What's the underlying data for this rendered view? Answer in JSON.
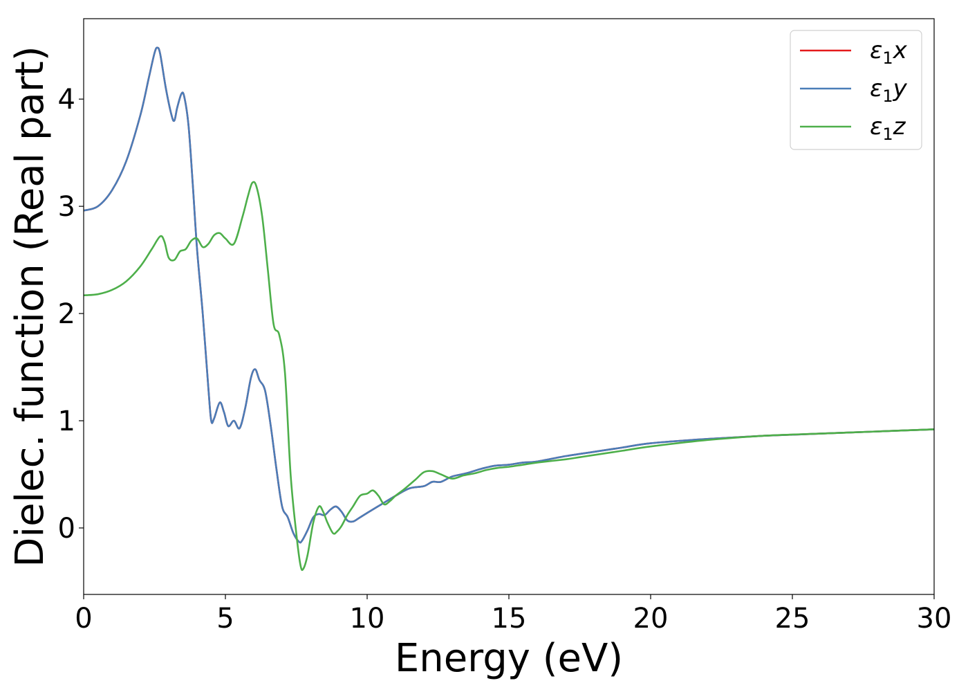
{
  "chart_data": {
    "type": "line",
    "xlabel": "Energy (eV)",
    "ylabel": "Dielec. function (Real part)",
    "xlim": [
      0,
      30
    ],
    "ylim": [
      -0.62,
      4.75
    ],
    "xticks": [
      0,
      5,
      10,
      15,
      20,
      25,
      30
    ],
    "yticks": [
      0,
      1,
      2,
      3,
      4
    ],
    "grid": false,
    "legend_position": "top-right",
    "series": [
      {
        "name": "ε1x",
        "legend_main": "ε",
        "legend_sub": "1",
        "legend_suffix": "x",
        "color": "#e41a1c",
        "x": [
          0,
          0.5,
          1,
          1.5,
          2,
          2.3,
          2.5,
          2.6,
          2.7,
          2.9,
          3.1,
          3.2,
          3.3,
          3.45,
          3.55,
          3.7,
          3.85,
          4.0,
          4.2,
          4.4,
          4.5,
          4.6,
          4.8,
          4.95,
          5.1,
          5.3,
          5.5,
          5.7,
          5.9,
          6.05,
          6.2,
          6.4,
          6.6,
          6.8,
          7.0,
          7.2,
          7.4,
          7.6,
          7.7,
          7.9,
          8.1,
          8.3,
          8.5,
          8.7,
          8.9,
          9.1,
          9.3,
          9.5,
          9.7,
          10,
          10.5,
          11,
          11.5,
          12,
          12.3,
          12.6,
          13,
          13.5,
          14,
          14.5,
          15,
          15.5,
          16,
          17,
          18,
          19,
          20,
          22,
          24,
          26,
          28,
          30
        ],
        "y": [
          2.96,
          3.0,
          3.15,
          3.42,
          3.85,
          4.2,
          4.43,
          4.48,
          4.42,
          4.1,
          3.85,
          3.8,
          3.92,
          4.05,
          4.02,
          3.75,
          3.2,
          2.6,
          2.0,
          1.3,
          1.0,
          1.02,
          1.17,
          1.08,
          0.95,
          1.0,
          0.93,
          1.12,
          1.4,
          1.48,
          1.38,
          1.28,
          0.95,
          0.55,
          0.2,
          0.1,
          -0.05,
          -0.13,
          -0.12,
          -0.02,
          0.1,
          0.13,
          0.12,
          0.17,
          0.2,
          0.15,
          0.07,
          0.06,
          0.09,
          0.14,
          0.22,
          0.3,
          0.37,
          0.39,
          0.43,
          0.43,
          0.48,
          0.51,
          0.55,
          0.58,
          0.59,
          0.61,
          0.62,
          0.67,
          0.71,
          0.75,
          0.79,
          0.83,
          0.86,
          0.88,
          0.9,
          0.92
        ]
      },
      {
        "name": "ε1y",
        "legend_main": "ε",
        "legend_sub": "1",
        "legend_suffix": "y",
        "color": "#4a7db8",
        "x": [
          0,
          0.5,
          1,
          1.5,
          2,
          2.3,
          2.5,
          2.6,
          2.7,
          2.9,
          3.1,
          3.2,
          3.3,
          3.45,
          3.55,
          3.7,
          3.85,
          4.0,
          4.2,
          4.4,
          4.5,
          4.6,
          4.8,
          4.95,
          5.1,
          5.3,
          5.5,
          5.7,
          5.9,
          6.05,
          6.2,
          6.4,
          6.6,
          6.8,
          7.0,
          7.2,
          7.4,
          7.6,
          7.7,
          7.9,
          8.1,
          8.3,
          8.5,
          8.7,
          8.9,
          9.1,
          9.3,
          9.5,
          9.7,
          10,
          10.5,
          11,
          11.5,
          12,
          12.3,
          12.6,
          13,
          13.5,
          14,
          14.5,
          15,
          15.5,
          16,
          17,
          18,
          19,
          20,
          22,
          24,
          26,
          28,
          30
        ],
        "y": [
          2.96,
          3.0,
          3.15,
          3.42,
          3.85,
          4.2,
          4.43,
          4.48,
          4.42,
          4.1,
          3.85,
          3.8,
          3.92,
          4.05,
          4.02,
          3.75,
          3.2,
          2.6,
          2.0,
          1.3,
          1.0,
          1.02,
          1.17,
          1.08,
          0.95,
          1.0,
          0.93,
          1.12,
          1.4,
          1.48,
          1.38,
          1.28,
          0.95,
          0.55,
          0.2,
          0.1,
          -0.05,
          -0.13,
          -0.12,
          -0.02,
          0.1,
          0.13,
          0.12,
          0.17,
          0.2,
          0.15,
          0.07,
          0.06,
          0.09,
          0.14,
          0.22,
          0.3,
          0.37,
          0.39,
          0.43,
          0.43,
          0.48,
          0.51,
          0.55,
          0.58,
          0.59,
          0.61,
          0.62,
          0.67,
          0.71,
          0.75,
          0.79,
          0.83,
          0.86,
          0.88,
          0.9,
          0.92
        ]
      },
      {
        "name": "ε1z",
        "legend_main": "ε",
        "legend_sub": "1",
        "legend_suffix": "z",
        "color": "#4daf4a",
        "x": [
          0,
          0.5,
          1,
          1.5,
          2,
          2.4,
          2.7,
          2.85,
          3.0,
          3.2,
          3.4,
          3.6,
          3.8,
          4.0,
          4.2,
          4.4,
          4.6,
          4.8,
          5.0,
          5.3,
          5.6,
          5.8,
          5.95,
          6.1,
          6.3,
          6.5,
          6.7,
          6.9,
          7.1,
          7.3,
          7.5,
          7.65,
          7.75,
          7.9,
          8.1,
          8.3,
          8.45,
          8.6,
          8.8,
          8.95,
          9.1,
          9.3,
          9.5,
          9.75,
          10.0,
          10.2,
          10.4,
          10.6,
          10.8,
          11.0,
          11.3,
          11.7,
          12.0,
          12.3,
          12.6,
          13.0,
          13.4,
          13.8,
          14.2,
          14.6,
          15,
          15.5,
          16,
          17,
          17.5,
          18,
          19,
          20,
          22,
          24,
          26,
          28,
          30
        ],
        "y": [
          2.17,
          2.18,
          2.22,
          2.3,
          2.44,
          2.6,
          2.72,
          2.67,
          2.52,
          2.5,
          2.58,
          2.6,
          2.68,
          2.7,
          2.62,
          2.65,
          2.73,
          2.75,
          2.7,
          2.65,
          2.9,
          3.1,
          3.22,
          3.18,
          2.9,
          2.4,
          1.9,
          1.8,
          1.45,
          0.5,
          -0.05,
          -0.35,
          -0.38,
          -0.25,
          0.05,
          0.2,
          0.15,
          0.05,
          -0.05,
          -0.03,
          0.02,
          0.12,
          0.2,
          0.3,
          0.32,
          0.35,
          0.3,
          0.22,
          0.25,
          0.3,
          0.36,
          0.45,
          0.52,
          0.53,
          0.5,
          0.46,
          0.49,
          0.51,
          0.54,
          0.56,
          0.57,
          0.59,
          0.61,
          0.64,
          0.66,
          0.68,
          0.72,
          0.76,
          0.82,
          0.86,
          0.88,
          0.9,
          0.92
        ]
      }
    ]
  }
}
